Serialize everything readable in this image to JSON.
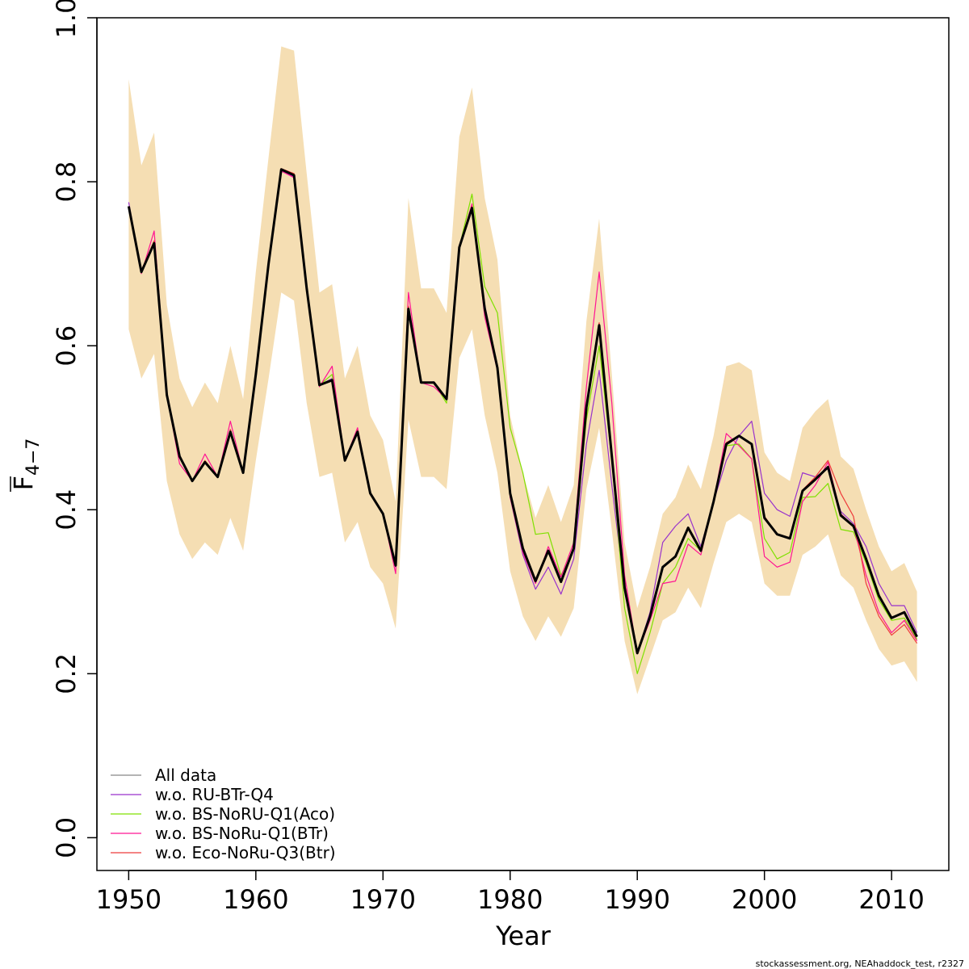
{
  "chart_data": {
    "type": "line",
    "xlabel": "Year",
    "ylabel_main": "F",
    "ylabel_sub": "4−7",
    "xlim": [
      1947.5,
      2014.5
    ],
    "ylim": [
      -0.04,
      1.0
    ],
    "x_ticks": [
      1950,
      1960,
      1970,
      1980,
      1990,
      2000,
      2010
    ],
    "x_tick_labels": [
      "1950",
      "1960",
      "1970",
      "1980",
      "1990",
      "2000",
      "2010"
    ],
    "y_ticks": [
      0.0,
      0.2,
      0.4,
      0.6,
      0.8,
      1.0
    ],
    "y_tick_labels": [
      "0.0",
      "0.2",
      "0.4",
      "0.6",
      "0.8",
      "1.0"
    ],
    "grid": false,
    "legend_position": "bottom-left",
    "band_color": "#F5DEB3",
    "years": [
      1950,
      1951,
      1952,
      1953,
      1954,
      1955,
      1956,
      1957,
      1958,
      1959,
      1960,
      1961,
      1962,
      1963,
      1964,
      1965,
      1966,
      1967,
      1968,
      1969,
      1970,
      1971,
      1972,
      1973,
      1974,
      1975,
      1976,
      1977,
      1978,
      1979,
      1980,
      1981,
      1982,
      1983,
      1984,
      1985,
      1986,
      1987,
      1988,
      1989,
      1990,
      1991,
      1992,
      1993,
      1994,
      1995,
      1996,
      1997,
      1998,
      1999,
      2000,
      2001,
      2002,
      2003,
      2004,
      2005,
      2006,
      2007,
      2008,
      2009,
      2010,
      2011,
      2012
    ],
    "band": {
      "upper": [
        0.925,
        0.82,
        0.86,
        0.65,
        0.56,
        0.525,
        0.555,
        0.53,
        0.6,
        0.535,
        0.69,
        0.83,
        0.965,
        0.96,
        0.81,
        0.665,
        0.675,
        0.56,
        0.6,
        0.515,
        0.485,
        0.41,
        0.78,
        0.67,
        0.67,
        0.64,
        0.855,
        0.915,
        0.78,
        0.705,
        0.515,
        0.445,
        0.39,
        0.43,
        0.385,
        0.43,
        0.63,
        0.755,
        0.565,
        0.36,
        0.28,
        0.33,
        0.395,
        0.415,
        0.455,
        0.425,
        0.49,
        0.575,
        0.58,
        0.57,
        0.47,
        0.445,
        0.435,
        0.5,
        0.52,
        0.535,
        0.465,
        0.45,
        0.4,
        0.355,
        0.325,
        0.335,
        0.3
      ],
      "lower": [
        0.62,
        0.56,
        0.59,
        0.435,
        0.37,
        0.34,
        0.36,
        0.345,
        0.39,
        0.35,
        0.46,
        0.56,
        0.665,
        0.655,
        0.53,
        0.44,
        0.445,
        0.36,
        0.385,
        0.33,
        0.31,
        0.255,
        0.51,
        0.44,
        0.44,
        0.425,
        0.585,
        0.62,
        0.515,
        0.445,
        0.325,
        0.27,
        0.24,
        0.27,
        0.245,
        0.28,
        0.425,
        0.5,
        0.375,
        0.24,
        0.175,
        0.22,
        0.265,
        0.275,
        0.305,
        0.28,
        0.335,
        0.385,
        0.395,
        0.385,
        0.31,
        0.295,
        0.295,
        0.345,
        0.355,
        0.37,
        0.32,
        0.305,
        0.265,
        0.23,
        0.21,
        0.215,
        0.19
      ]
    },
    "series": [
      {
        "name": "All data",
        "legend_line_color": "#888888",
        "color": "#000000",
        "values": [
          0.77,
          0.69,
          0.725,
          0.54,
          0.465,
          0.435,
          0.458,
          0.44,
          0.495,
          0.445,
          0.565,
          0.7,
          0.815,
          0.808,
          0.67,
          0.552,
          0.558,
          0.46,
          0.495,
          0.42,
          0.395,
          0.332,
          0.645,
          0.555,
          0.555,
          0.535,
          0.72,
          0.768,
          0.645,
          0.573,
          0.42,
          0.353,
          0.313,
          0.35,
          0.312,
          0.353,
          0.525,
          0.625,
          0.465,
          0.305,
          0.225,
          0.27,
          0.33,
          0.343,
          0.378,
          0.35,
          0.41,
          0.48,
          0.49,
          0.48,
          0.39,
          0.37,
          0.365,
          0.423,
          0.437,
          0.452,
          0.393,
          0.38,
          0.34,
          0.295,
          0.268,
          0.275,
          0.245
        ]
      },
      {
        "name": "w.o. RU-BTr-Q4",
        "color": "#9932CC",
        "values": [
          0.775,
          0.69,
          0.725,
          0.54,
          0.465,
          0.435,
          0.458,
          0.44,
          0.495,
          0.445,
          0.565,
          0.7,
          0.813,
          0.806,
          0.67,
          0.552,
          0.56,
          0.46,
          0.495,
          0.42,
          0.395,
          0.33,
          0.645,
          0.555,
          0.556,
          0.534,
          0.72,
          0.768,
          0.65,
          0.575,
          0.415,
          0.345,
          0.303,
          0.33,
          0.297,
          0.34,
          0.48,
          0.57,
          0.43,
          0.3,
          0.225,
          0.275,
          0.36,
          0.38,
          0.395,
          0.355,
          0.41,
          0.46,
          0.49,
          0.508,
          0.42,
          0.4,
          0.392,
          0.445,
          0.44,
          0.45,
          0.398,
          0.383,
          0.355,
          0.31,
          0.283,
          0.283,
          0.25
        ]
      },
      {
        "name": "w.o. BS-NoRU-Q1(Aco)",
        "color": "#7FE000",
        "values": [
          0.77,
          0.69,
          0.725,
          0.54,
          0.465,
          0.435,
          0.458,
          0.44,
          0.495,
          0.445,
          0.565,
          0.7,
          0.815,
          0.81,
          0.67,
          0.552,
          0.565,
          0.46,
          0.495,
          0.42,
          0.395,
          0.333,
          0.645,
          0.555,
          0.555,
          0.53,
          0.72,
          0.785,
          0.672,
          0.64,
          0.5,
          0.445,
          0.37,
          0.372,
          0.32,
          0.35,
          0.51,
          0.6,
          0.46,
          0.28,
          0.2,
          0.25,
          0.31,
          0.33,
          0.365,
          0.35,
          0.41,
          0.478,
          0.48,
          0.462,
          0.365,
          0.34,
          0.348,
          0.415,
          0.416,
          0.432,
          0.376,
          0.373,
          0.335,
          0.29,
          0.265,
          0.268,
          0.242
        ]
      },
      {
        "name": "w.o. BS-NoRu-Q1(BTr)",
        "color": "#FF1493",
        "values": [
          0.77,
          0.688,
          0.74,
          0.54,
          0.456,
          0.435,
          0.468,
          0.44,
          0.508,
          0.445,
          0.565,
          0.7,
          0.813,
          0.805,
          0.67,
          0.55,
          0.575,
          0.46,
          0.5,
          0.42,
          0.395,
          0.322,
          0.665,
          0.555,
          0.55,
          0.535,
          0.72,
          0.773,
          0.635,
          0.57,
          0.415,
          0.348,
          0.31,
          0.355,
          0.318,
          0.36,
          0.55,
          0.69,
          0.53,
          0.32,
          0.225,
          0.265,
          0.31,
          0.313,
          0.358,
          0.345,
          0.41,
          0.493,
          0.478,
          0.462,
          0.343,
          0.33,
          0.336,
          0.41,
          0.43,
          0.458,
          0.395,
          0.38,
          0.32,
          0.275,
          0.25,
          0.265,
          0.24
        ]
      },
      {
        "name": "w.o. Eco-NoRu-Q3(Btr)",
        "color": "#EE3B3B",
        "values": [
          0.768,
          0.692,
          0.728,
          0.54,
          0.465,
          0.436,
          0.46,
          0.44,
          0.498,
          0.445,
          0.565,
          0.7,
          0.816,
          0.81,
          0.67,
          0.552,
          0.558,
          0.46,
          0.497,
          0.42,
          0.395,
          0.333,
          0.648,
          0.555,
          0.555,
          0.535,
          0.722,
          0.77,
          0.645,
          0.573,
          0.42,
          0.353,
          0.315,
          0.35,
          0.313,
          0.355,
          0.527,
          0.628,
          0.468,
          0.307,
          0.226,
          0.27,
          0.33,
          0.343,
          0.378,
          0.35,
          0.41,
          0.482,
          0.49,
          0.48,
          0.392,
          0.37,
          0.366,
          0.424,
          0.44,
          0.46,
          0.42,
          0.392,
          0.31,
          0.27,
          0.247,
          0.26,
          0.237
        ]
      }
    ]
  },
  "footer": {
    "note": "stockassessment.org, NEAhaddock_test, r2327"
  }
}
